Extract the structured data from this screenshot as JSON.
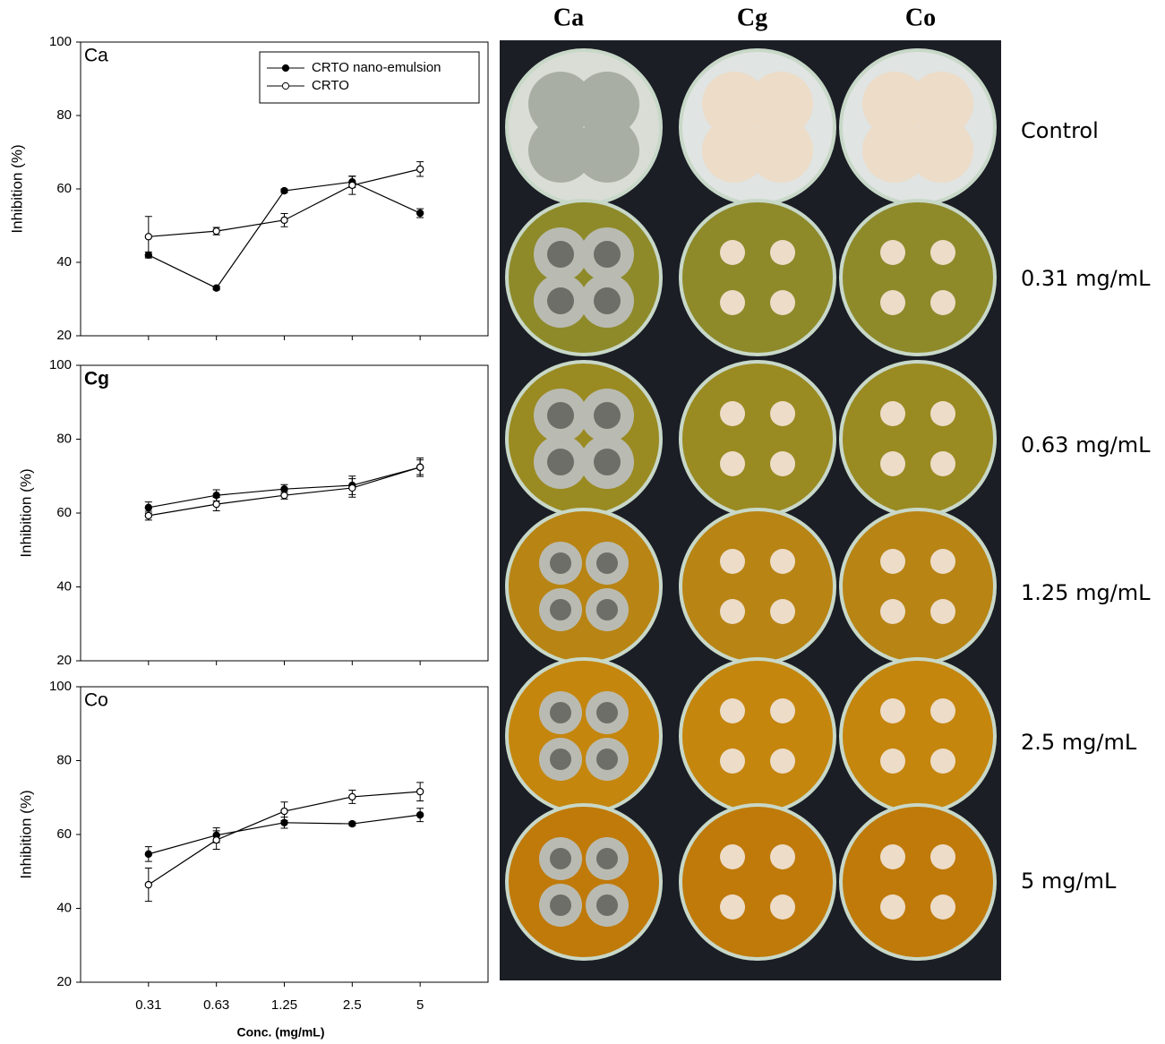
{
  "chart_data": [
    {
      "type": "line",
      "title": "Ca",
      "ylabel": "Inhibition (%)",
      "categories": [
        null,
        null,
        null,
        null,
        null
      ],
      "ylim": [
        20,
        100
      ],
      "yticks": [
        20,
        40,
        60,
        80,
        100
      ],
      "legend": "top-right",
      "series": [
        {
          "name": "CRTO nano-emulsion",
          "color": "#000000",
          "marker": "filled",
          "values": [
            42,
            33,
            59.5,
            61.9,
            53.4
          ],
          "errors": [
            0.8,
            0.5,
            0.5,
            1.5,
            1.2
          ]
        },
        {
          "name": "CRTO",
          "color": "#000000",
          "marker": "open",
          "values": [
            47,
            48.5,
            51.5,
            61,
            65.4
          ],
          "errors": [
            5.5,
            1,
            1.8,
            2.5,
            2
          ]
        }
      ]
    },
    {
      "type": "line",
      "title": "Cg",
      "ylabel": "Inhibition (%)",
      "categories": [
        null,
        null,
        null,
        null,
        null
      ],
      "ylim": [
        20,
        100
      ],
      "yticks": [
        20,
        40,
        60,
        80,
        100
      ],
      "series": [
        {
          "color": "#000000",
          "marker": "filled",
          "values": [
            61.5,
            64.8,
            66.5,
            67.5,
            72.4
          ],
          "errors": [
            1.5,
            1.5,
            1.2,
            2.5,
            2
          ]
        },
        {
          "color": "#000000",
          "marker": "open",
          "values": [
            59.3,
            62.4,
            64.8,
            66.8,
            72.4
          ],
          "errors": [
            1.2,
            1.8,
            1,
            2.5,
            2.5
          ]
        }
      ]
    },
    {
      "type": "line",
      "title": "Co",
      "ylabel": "Inhibition (%)",
      "xlabel": "Conc. (mg/mL)",
      "categories": [
        "0.31",
        "0.63",
        "1.25",
        "2.5",
        "5"
      ],
      "ylim": [
        20,
        100
      ],
      "yticks": [
        20,
        40,
        60,
        80,
        100
      ],
      "series": [
        {
          "color": "#000000",
          "marker": "filled",
          "values": [
            54.7,
            59.8,
            63.2,
            62.9,
            65.3
          ],
          "errors": [
            2,
            2,
            1.5,
            0.5,
            1.8
          ]
        },
        {
          "color": "#000000",
          "marker": "open",
          "values": [
            46.4,
            58.5,
            66.3,
            70.2,
            71.6
          ],
          "errors": [
            4.5,
            2.5,
            2.5,
            1.8,
            2.5
          ]
        }
      ]
    }
  ],
  "photo_panel": {
    "columns": [
      "Ca",
      "Cg",
      "Co"
    ],
    "rows": [
      "Control",
      "0.31 mg/mL",
      "0.63 mg/mL",
      "1.25 mg/mL",
      "2.5 mg/mL",
      "5 mg/mL"
    ]
  }
}
